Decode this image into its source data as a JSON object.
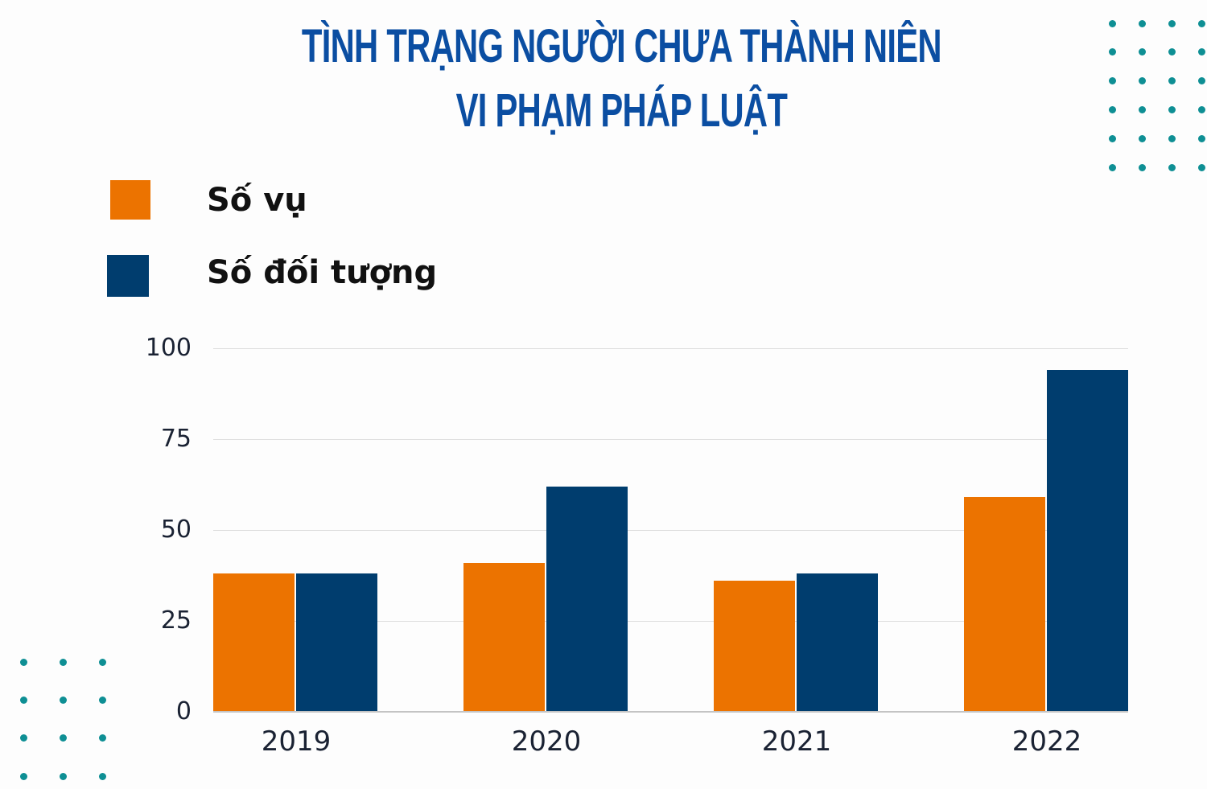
{
  "title": {
    "line1": "TÌNH TRẠNG NGƯỜI CHƯA THÀNH NIÊN",
    "line2": "VI PHẠM PHÁP LUẬT"
  },
  "legend": [
    {
      "label": "Số vụ",
      "color": "#ec7300"
    },
    {
      "label": "Số đối tượng",
      "color": "#003d6e"
    }
  ],
  "colors": {
    "title": "#0b4ea2",
    "dots": "#0e8f94",
    "gridline": "#dedede"
  },
  "chart_data": {
    "type": "bar",
    "title": "TÌNH TRẠNG NGƯỜI CHƯA THÀNH NIÊN VI PHẠM PHÁP LUẬT",
    "categories": [
      "2019",
      "2020",
      "2021",
      "2022"
    ],
    "series": [
      {
        "name": "Số vụ",
        "color": "#ec7300",
        "values": [
          38,
          41,
          36,
          59
        ]
      },
      {
        "name": "Số đối tượng",
        "color": "#003d6e",
        "values": [
          38,
          62,
          38,
          94
        ]
      }
    ],
    "xlabel": "",
    "ylabel": "",
    "ylim": [
      0,
      100
    ],
    "yticks": [
      0,
      25,
      50,
      75,
      100
    ],
    "grid": true,
    "legend_position": "top-left"
  }
}
